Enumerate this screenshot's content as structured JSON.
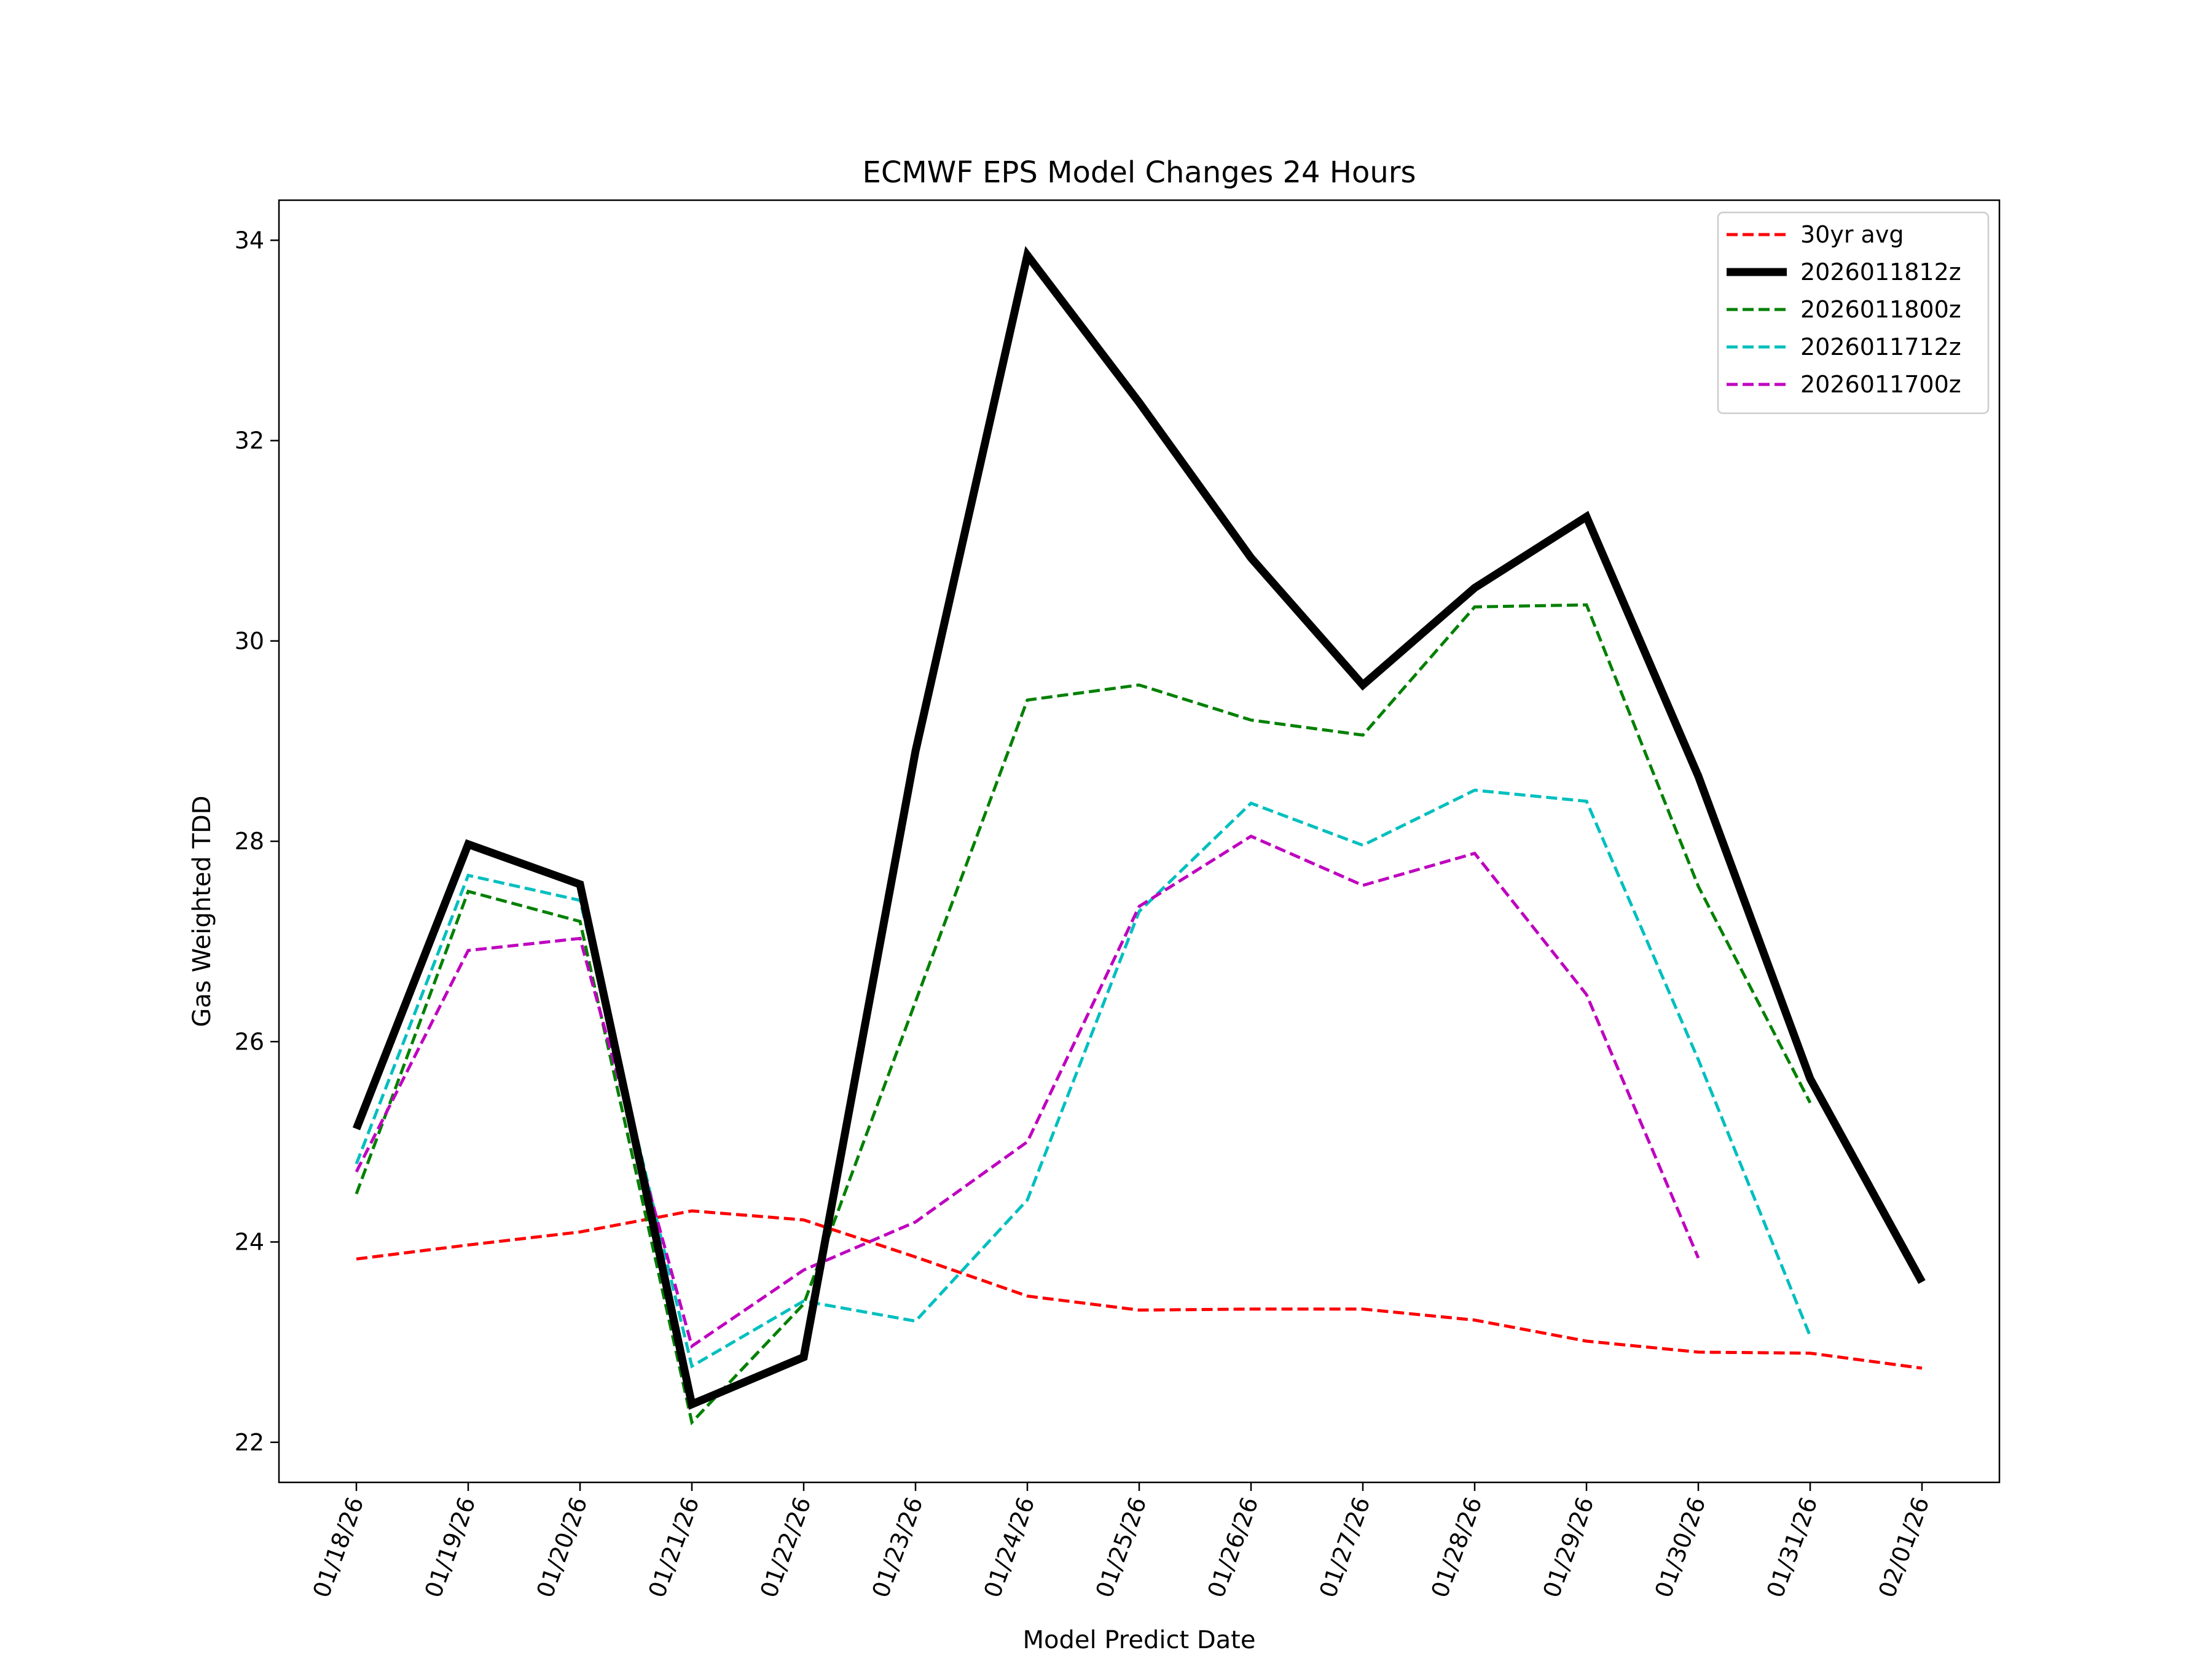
{
  "chart_data": {
    "type": "line",
    "title": "ECMWF EPS Model Changes 24 Hours",
    "xlabel": "Model Predict Date",
    "ylabel": "Gas Weighted TDD",
    "categories": [
      "01/18/26",
      "01/19/26",
      "01/20/26",
      "01/21/26",
      "01/22/26",
      "01/23/26",
      "01/24/26",
      "01/25/26",
      "01/26/26",
      "01/27/26",
      "01/28/26",
      "01/29/26",
      "01/30/26",
      "01/31/26",
      "02/01/26"
    ],
    "yticks": [
      22,
      24,
      26,
      28,
      30,
      32,
      34
    ],
    "ylim": [
      21.6,
      34.4
    ],
    "grid": false,
    "legend_position": "top-right",
    "series": [
      {
        "name": "30yr avg",
        "color": "#ff0000",
        "style": "dashed",
        "width": "thin",
        "values": [
          23.83,
          23.97,
          24.1,
          24.31,
          24.22,
          23.85,
          23.46,
          23.32,
          23.33,
          23.33,
          23.22,
          23.01,
          22.9,
          22.89,
          22.74
        ]
      },
      {
        "name": "2026011812z",
        "color": "#000000",
        "style": "solid",
        "width": "thick",
        "values": [
          25.13,
          27.97,
          27.57,
          22.38,
          22.85,
          28.9,
          33.85,
          32.38,
          30.83,
          29.56,
          30.53,
          31.24,
          28.65,
          25.63,
          23.6
        ]
      },
      {
        "name": "2026011800z",
        "color": "#008000",
        "style": "dashed",
        "width": "thin",
        "values": [
          24.48,
          27.5,
          27.2,
          22.2,
          23.38,
          26.4,
          29.41,
          29.56,
          29.21,
          29.06,
          30.34,
          30.36,
          27.55,
          25.39,
          null
        ]
      },
      {
        "name": "2026011712z",
        "color": "#00bfbf",
        "style": "dashed",
        "width": "thin",
        "values": [
          24.78,
          27.66,
          27.41,
          22.76,
          23.41,
          23.21,
          24.42,
          27.3,
          28.38,
          27.96,
          28.51,
          28.4,
          25.82,
          23.06,
          null
        ]
      },
      {
        "name": "2026011700z",
        "color": "#bf00bf",
        "style": "dashed",
        "width": "thin",
        "values": [
          24.7,
          26.91,
          27.03,
          22.96,
          23.72,
          24.2,
          25.0,
          27.35,
          28.05,
          27.56,
          27.88,
          26.47,
          23.84,
          null,
          null
        ]
      }
    ]
  }
}
